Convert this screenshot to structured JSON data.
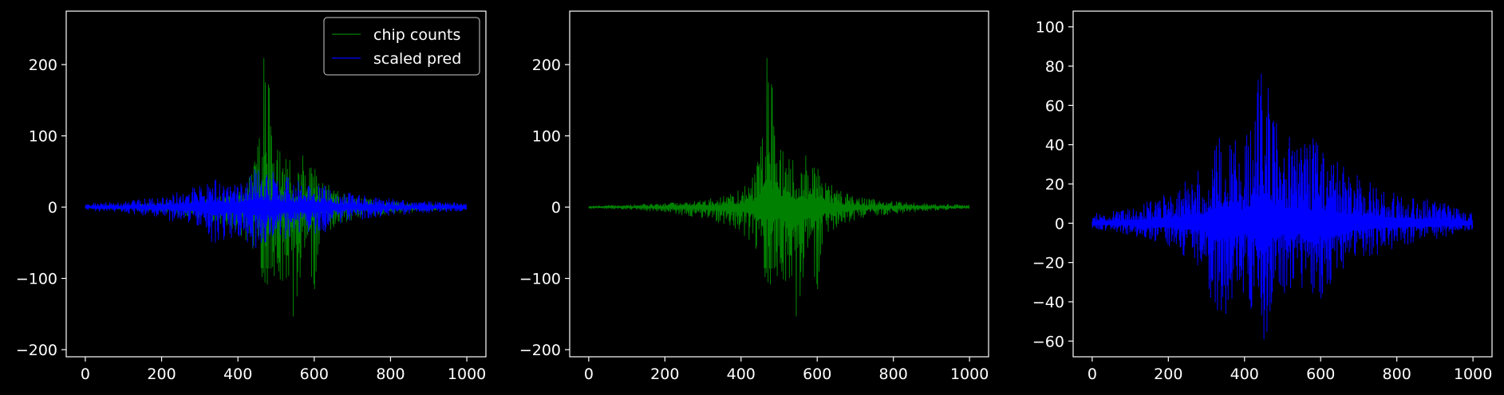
{
  "figure": {
    "background": "#000000",
    "foreground": "#ffffff"
  },
  "chart_data": [
    {
      "type": "line",
      "title": "",
      "xlabel": "",
      "ylabel": "",
      "xlim": [
        -50,
        1050
      ],
      "ylim": [
        -210,
        275
      ],
      "xticks": [
        0,
        200,
        400,
        600,
        800,
        1000
      ],
      "yticks": [
        -200,
        -100,
        0,
        100,
        200
      ],
      "grid": false,
      "legend": "top-right",
      "series": [
        {
          "name": "chip counts",
          "color": "#008000",
          "n": 1000,
          "envelope_x": [
            0,
            100,
            200,
            300,
            350,
            400,
            430,
            450,
            465,
            480,
            500,
            520,
            540,
            560,
            580,
            600,
            620,
            650,
            700,
            800,
            900,
            1000
          ],
          "upper": [
            2,
            3,
            6,
            10,
            15,
            25,
            45,
            110,
            255,
            180,
            90,
            120,
            60,
            100,
            55,
            65,
            40,
            25,
            15,
            8,
            5,
            3
          ],
          "lower": [
            -2,
            -3,
            -8,
            -15,
            -25,
            -35,
            -55,
            -90,
            -100,
            -120,
            -100,
            -110,
            -185,
            -120,
            -90,
            -130,
            -45,
            -30,
            -18,
            -10,
            -5,
            -3
          ]
        },
        {
          "name": "scaled pred",
          "color": "#0000ff",
          "n": 1000,
          "envelope_x": [
            0,
            100,
            200,
            300,
            320,
            400,
            450,
            500,
            550,
            600,
            650,
            700,
            800,
            900,
            1000
          ],
          "upper": [
            5,
            8,
            15,
            30,
            40,
            35,
            75,
            45,
            40,
            40,
            25,
            20,
            12,
            8,
            5
          ],
          "lower": [
            -5,
            -8,
            -15,
            -35,
            -55,
            -40,
            -65,
            -50,
            -40,
            -45,
            -28,
            -20,
            -12,
            -8,
            -5
          ]
        }
      ]
    },
    {
      "type": "line",
      "title": "",
      "xlabel": "",
      "ylabel": "",
      "xlim": [
        -50,
        1050
      ],
      "ylim": [
        -210,
        275
      ],
      "xticks": [
        0,
        200,
        400,
        600,
        800,
        1000
      ],
      "yticks": [
        -200,
        -100,
        0,
        100,
        200
      ],
      "grid": false,
      "legend": "none",
      "series": [
        {
          "color": "#008000",
          "n": 1000,
          "envelope_x": [
            0,
            100,
            200,
            300,
            350,
            400,
            430,
            450,
            465,
            480,
            500,
            520,
            540,
            560,
            580,
            600,
            620,
            650,
            700,
            800,
            900,
            1000
          ],
          "upper": [
            2,
            3,
            6,
            10,
            15,
            25,
            45,
            110,
            255,
            180,
            90,
            120,
            60,
            100,
            55,
            65,
            40,
            25,
            15,
            8,
            5,
            3
          ],
          "lower": [
            -2,
            -3,
            -8,
            -15,
            -25,
            -35,
            -55,
            -90,
            -100,
            -120,
            -100,
            -110,
            -185,
            -120,
            -90,
            -130,
            -45,
            -30,
            -18,
            -10,
            -5,
            -3
          ]
        }
      ]
    },
    {
      "type": "line",
      "title": "",
      "xlabel": "",
      "ylabel": "",
      "xlim": [
        -50,
        1050
      ],
      "ylim": [
        -68,
        108
      ],
      "xticks": [
        0,
        200,
        400,
        600,
        800,
        1000
      ],
      "yticks": [
        -60,
        -40,
        -20,
        0,
        20,
        40,
        60,
        80,
        100
      ],
      "grid": false,
      "legend": "none",
      "series": [
        {
          "color": "#0000ff",
          "n": 1000,
          "envelope_x": [
            0,
            100,
            200,
            300,
            320,
            400,
            450,
            470,
            500,
            550,
            600,
            650,
            700,
            800,
            900,
            1000
          ],
          "upper": [
            5,
            8,
            15,
            30,
            50,
            40,
            100,
            70,
            50,
            45,
            42,
            30,
            25,
            15,
            12,
            5
          ],
          "lower": [
            -3,
            -6,
            -12,
            -25,
            -55,
            -35,
            -60,
            -50,
            -38,
            -35,
            -42,
            -28,
            -20,
            -12,
            -8,
            -4
          ]
        }
      ]
    }
  ]
}
